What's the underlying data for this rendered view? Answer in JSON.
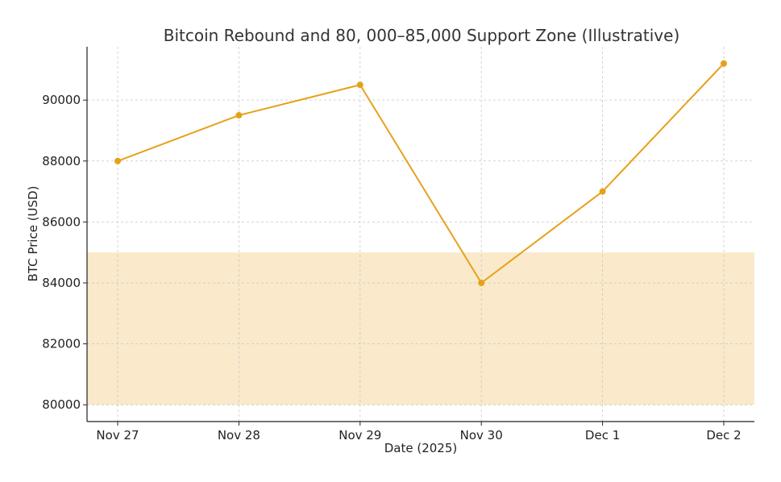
{
  "chart_data": {
    "type": "line",
    "title": "Bitcoin Rebound and 80, 000–85,000 Support Zone (Illustrative)",
    "xlabel": "Date (2025)",
    "ylabel": "BTC Price (USD)",
    "categories": [
      "Nov 27",
      "Nov 28",
      "Nov 29",
      "Nov 30",
      "Dec 1",
      "Dec 2"
    ],
    "series": [
      {
        "values": [
          88000,
          89500,
          90500,
          84000,
          87000,
          91200
        ],
        "color": "#e6a11a"
      }
    ],
    "yticks": [
      80000,
      82000,
      84000,
      86000,
      88000,
      90000
    ],
    "ylim": [
      79450,
      91750
    ],
    "support_zone": {
      "from": 80000,
      "to": 85000,
      "color": "#fae9ca"
    },
    "grid": true
  }
}
